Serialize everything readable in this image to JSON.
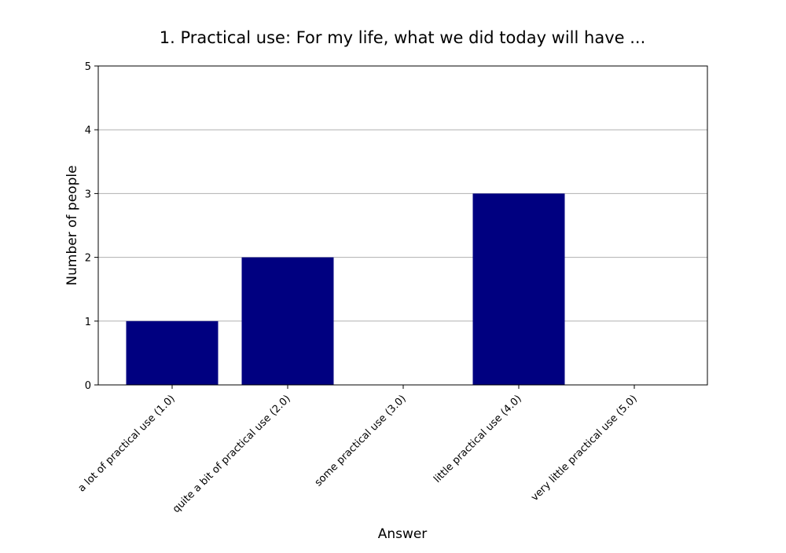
{
  "chart_data": {
    "type": "bar",
    "title": "1. Practical use: For my life, what we did today will have ...",
    "xlabel": "Answer",
    "ylabel": "Number of people",
    "categories": [
      "a lot of practical use (1.0)",
      "quite a bit of practical use (2.0)",
      "some practical use (3.0)",
      "little practical use (4.0)",
      "very little practical use (5.0)"
    ],
    "values": [
      1,
      2,
      0,
      3,
      0
    ],
    "ylim": [
      0,
      5
    ],
    "yticks": [
      "0",
      "1",
      "2",
      "3",
      "4",
      "5"
    ],
    "grid": "horizontal",
    "bar_color": "#000080",
    "legend": "none"
  }
}
